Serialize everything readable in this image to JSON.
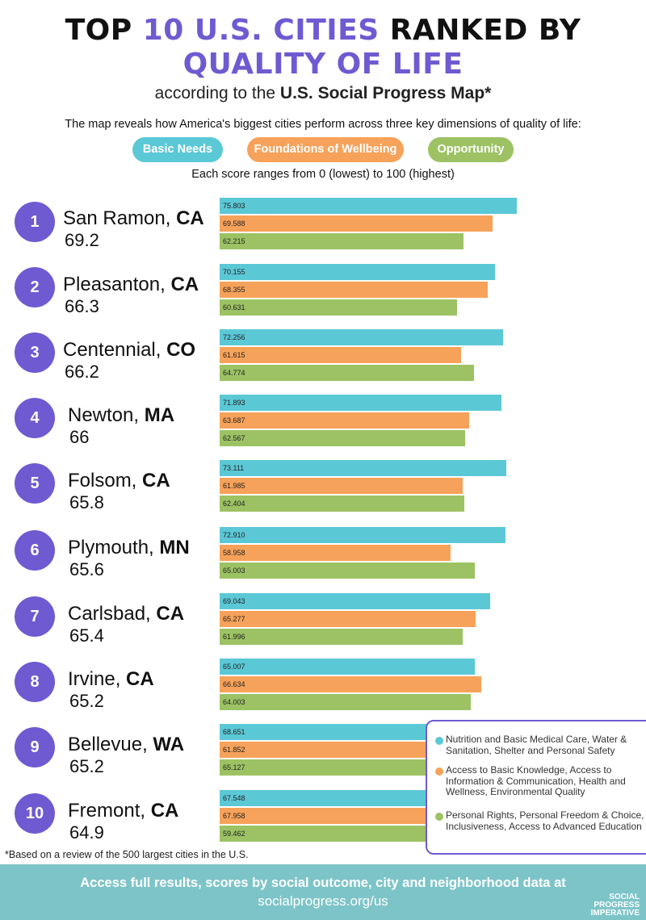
{
  "header": {
    "title_prefix": "TOP ",
    "title_highlight": "10 U.S. CITIES",
    "title_suffix": " RANKED BY",
    "title_line2": "QUALITY OF LIFE",
    "subtitle_prefix": "according to the ",
    "subtitle_bold": "U.S. Social Progress Map*",
    "intro": "The map reveals how America's biggest cities perform across three key dimensions of quality of life:",
    "pills": {
      "basic": "Basic Needs",
      "foundations": "Foundations of Wellbeing",
      "opportunity": "Opportunity"
    },
    "range_note": "Each score ranges from 0 (lowest) to 100 (highest)"
  },
  "colors": {
    "basic": "#5bc8d6",
    "foundations": "#f7a25a",
    "opportunity": "#9cc263",
    "accent": "#6f5ad1"
  },
  "chart_data": {
    "type": "bar",
    "orientation": "horizontal",
    "series_names": [
      "Basic Needs",
      "Foundations of Wellbeing",
      "Opportunity"
    ],
    "xlim": [
      0,
      100
    ],
    "rows": [
      {
        "rank": "1",
        "city": "San Ramon, ",
        "state": "CA",
        "score": "69.2",
        "values": [
          "75.803",
          "69.588",
          "62.215"
        ]
      },
      {
        "rank": "2",
        "city": "Pleasanton, ",
        "state": "CA",
        "score": "66.3",
        "values": [
          "70.155",
          "68.355",
          "60.631"
        ]
      },
      {
        "rank": "3",
        "city": "Centennial, ",
        "state": "CO",
        "score": "66.2",
        "values": [
          "72.256",
          "61.615",
          "64.774"
        ]
      },
      {
        "rank": "4",
        "city": "Newton, ",
        "state": "MA",
        "score": "66",
        "values": [
          "71.893",
          "63.687",
          "62.567"
        ]
      },
      {
        "rank": "5",
        "city": "Folsom, ",
        "state": "CA",
        "score": "65.8",
        "values": [
          "73.111",
          "61.985",
          "62.404"
        ]
      },
      {
        "rank": "6",
        "city": "Plymouth, ",
        "state": "MN",
        "score": "65.6",
        "values": [
          "72.910",
          "58.958",
          "65.003"
        ]
      },
      {
        "rank": "7",
        "city": "Carlsbad, ",
        "state": "CA",
        "score": "65.4",
        "values": [
          "69.043",
          "65.277",
          "61.996"
        ]
      },
      {
        "rank": "8",
        "city": "Irvine, ",
        "state": "CA",
        "score": "65.2",
        "values": [
          "65.007",
          "66.634",
          "64.003"
        ]
      },
      {
        "rank": "9",
        "city": "Bellevue, ",
        "state": "WA",
        "score": "65.2",
        "values": [
          "68.651",
          "61.852",
          "65.127"
        ]
      },
      {
        "rank": "10",
        "city": "Fremont, ",
        "state": "CA",
        "score": "64.9",
        "values": [
          "67.548",
          "67.958",
          "59.462"
        ]
      }
    ]
  },
  "legend": {
    "basic": "Nutrition and Basic Medical Care, Water & Sanitation, Shelter and Personal Safety",
    "foundations": "Access to Basic Knowledge, Access to Information & Communication, Health and Wellness, Environmental Quality",
    "opportunity": "Personal Rights, Personal Freedom & Choice, Inclusiveness, Access to Advanced Education"
  },
  "footnote": "*Based on a review of the 500 largest cities in the U.S.",
  "footer": {
    "line1": "Access full results, scores by social outcome, city and neighborhood data at",
    "line2": "socialprogress.org/us",
    "logo": [
      "SOCIAL",
      "PROGRESS",
      "IMPERATIVE"
    ]
  }
}
